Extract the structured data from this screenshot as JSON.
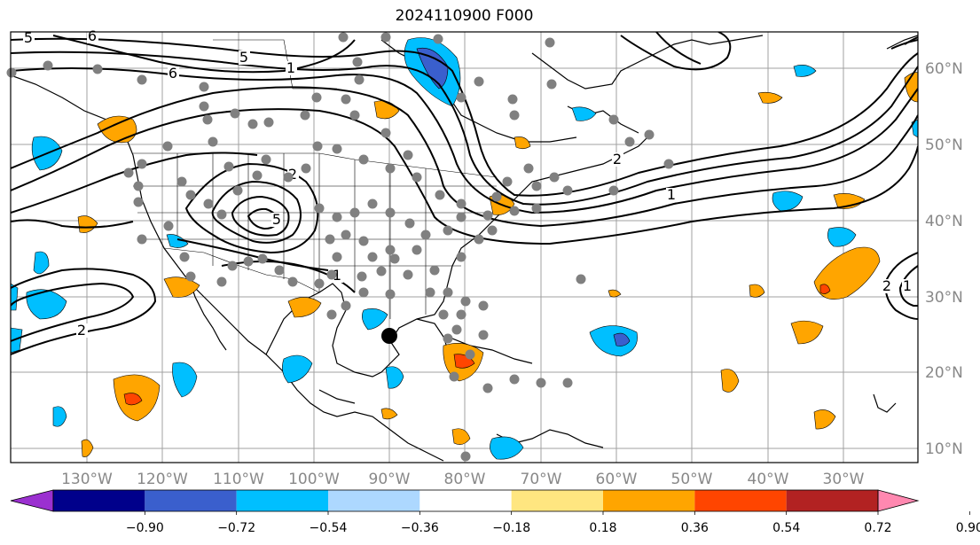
{
  "title": "2024110900 F000",
  "map": {
    "lon_labels": [
      "130°W",
      "120°W",
      "110°W",
      "100°W",
      "90°W",
      "80°W",
      "70°W",
      "60°W",
      "50°W",
      "40°W",
      "30°W"
    ],
    "lat_labels": [
      "60°N",
      "50°N",
      "40°N",
      "30°N",
      "20°N",
      "10°N"
    ],
    "contour_labels": [
      "5",
      "6",
      "5",
      "6",
      "1",
      "2",
      "5",
      "1",
      "2",
      "2",
      "1",
      "2",
      "1"
    ],
    "marker_color": "#000000",
    "station_color": "#808080"
  },
  "colorbar": {
    "colors": [
      "#9b30d0",
      "#00008b",
      "#3a5fcd",
      "#00bfff",
      "#add8ff",
      "#ffffff",
      "#ffe680",
      "#ffa500",
      "#ff4500",
      "#b22222",
      "#ff88b0"
    ],
    "tick_labels": [
      "−0.90",
      "−0.72",
      "−0.54",
      "−0.36",
      "−0.18",
      "0.18",
      "0.36",
      "0.54",
      "0.72",
      "0.90"
    ]
  }
}
